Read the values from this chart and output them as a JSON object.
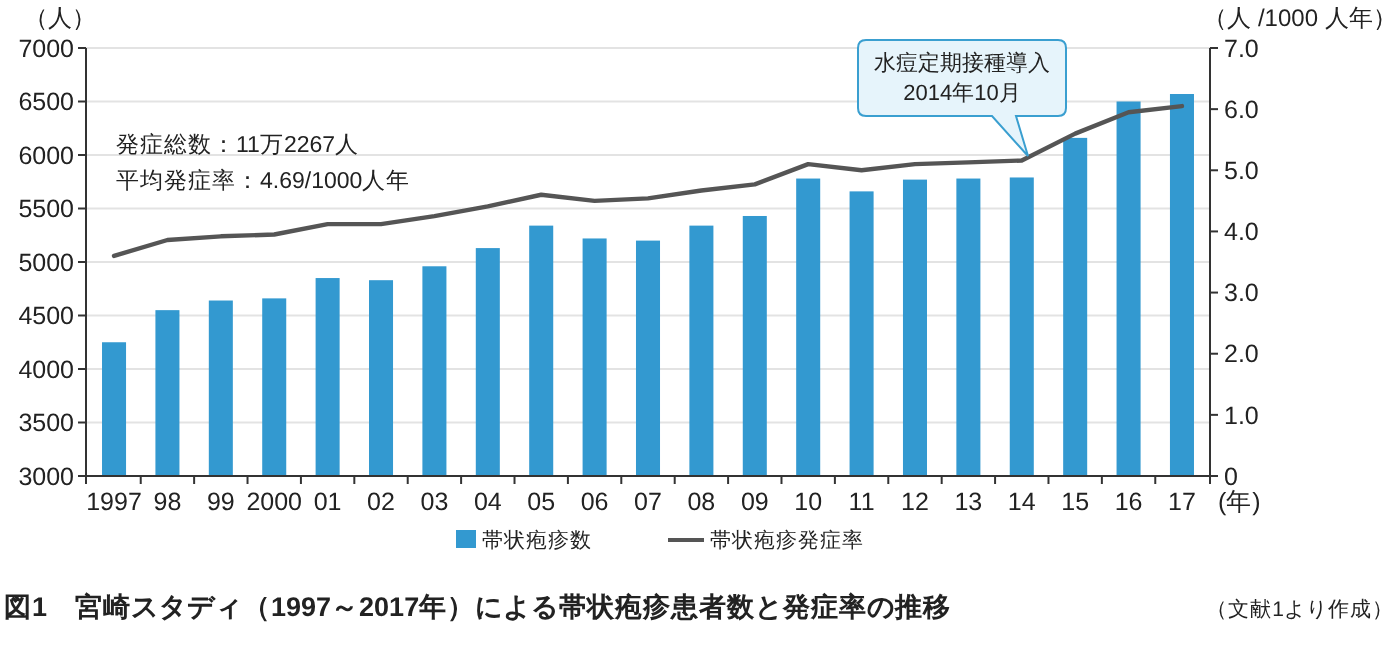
{
  "chart_data": {
    "type": "bar",
    "title": "図1　宮崎スタディ（1997～2017年）による帯状疱疹患者数と発症率の推移",
    "xlabel": "(年)",
    "ylabel": "（人）",
    "y2label": "（人 /1000 人年）",
    "categories": [
      "1997",
      "98",
      "99",
      "2000",
      "01",
      "02",
      "03",
      "04",
      "05",
      "06",
      "07",
      "08",
      "09",
      "10",
      "11",
      "12",
      "13",
      "14",
      "15",
      "16",
      "17"
    ],
    "series": [
      {
        "name": "帯状疱疹数",
        "color": "#3399d0",
        "values": [
          4250,
          4550,
          4640,
          4660,
          4850,
          4830,
          4960,
          5130,
          5340,
          5220,
          5200,
          5340,
          5430,
          5780,
          5660,
          5770,
          5780,
          5790,
          6160,
          6500,
          6570
        ]
      },
      {
        "name": "帯状疱疹発症率",
        "type": "line",
        "axis": "y2",
        "color": "#555555",
        "values": [
          3.6,
          3.86,
          3.92,
          3.95,
          4.12,
          4.12,
          4.25,
          4.41,
          4.6,
          4.5,
          4.54,
          4.67,
          4.77,
          5.1,
          5.0,
          5.1,
          5.13,
          5.16,
          5.6,
          5.95,
          6.05
        ]
      }
    ],
    "ylim": [
      3000,
      7000
    ],
    "yticks": [
      3000,
      3500,
      4000,
      4500,
      5000,
      5500,
      6000,
      6500,
      7000
    ],
    "y2lim": [
      0,
      7
    ],
    "y2ticks": [
      {
        "value": 0,
        "label": "0"
      },
      {
        "value": 1,
        "label": "1.0"
      },
      {
        "value": 2,
        "label": "2.0"
      },
      {
        "value": 3,
        "label": "3.0"
      },
      {
        "value": 4,
        "label": "4.0"
      },
      {
        "value": 5,
        "label": "5.0"
      },
      {
        "value": 6,
        "label": "6.0"
      },
      {
        "value": 7,
        "label": "7.0"
      }
    ],
    "grid": "y",
    "legend": "bottom",
    "marker": "none",
    "line_style": "solid",
    "annotations": [
      "発症総数：11万2267人",
      "平均発症率：4.69/1000人年",
      "水痘定期接種導入\n2014年10月",
      "（文献1より作成）"
    ]
  }
}
